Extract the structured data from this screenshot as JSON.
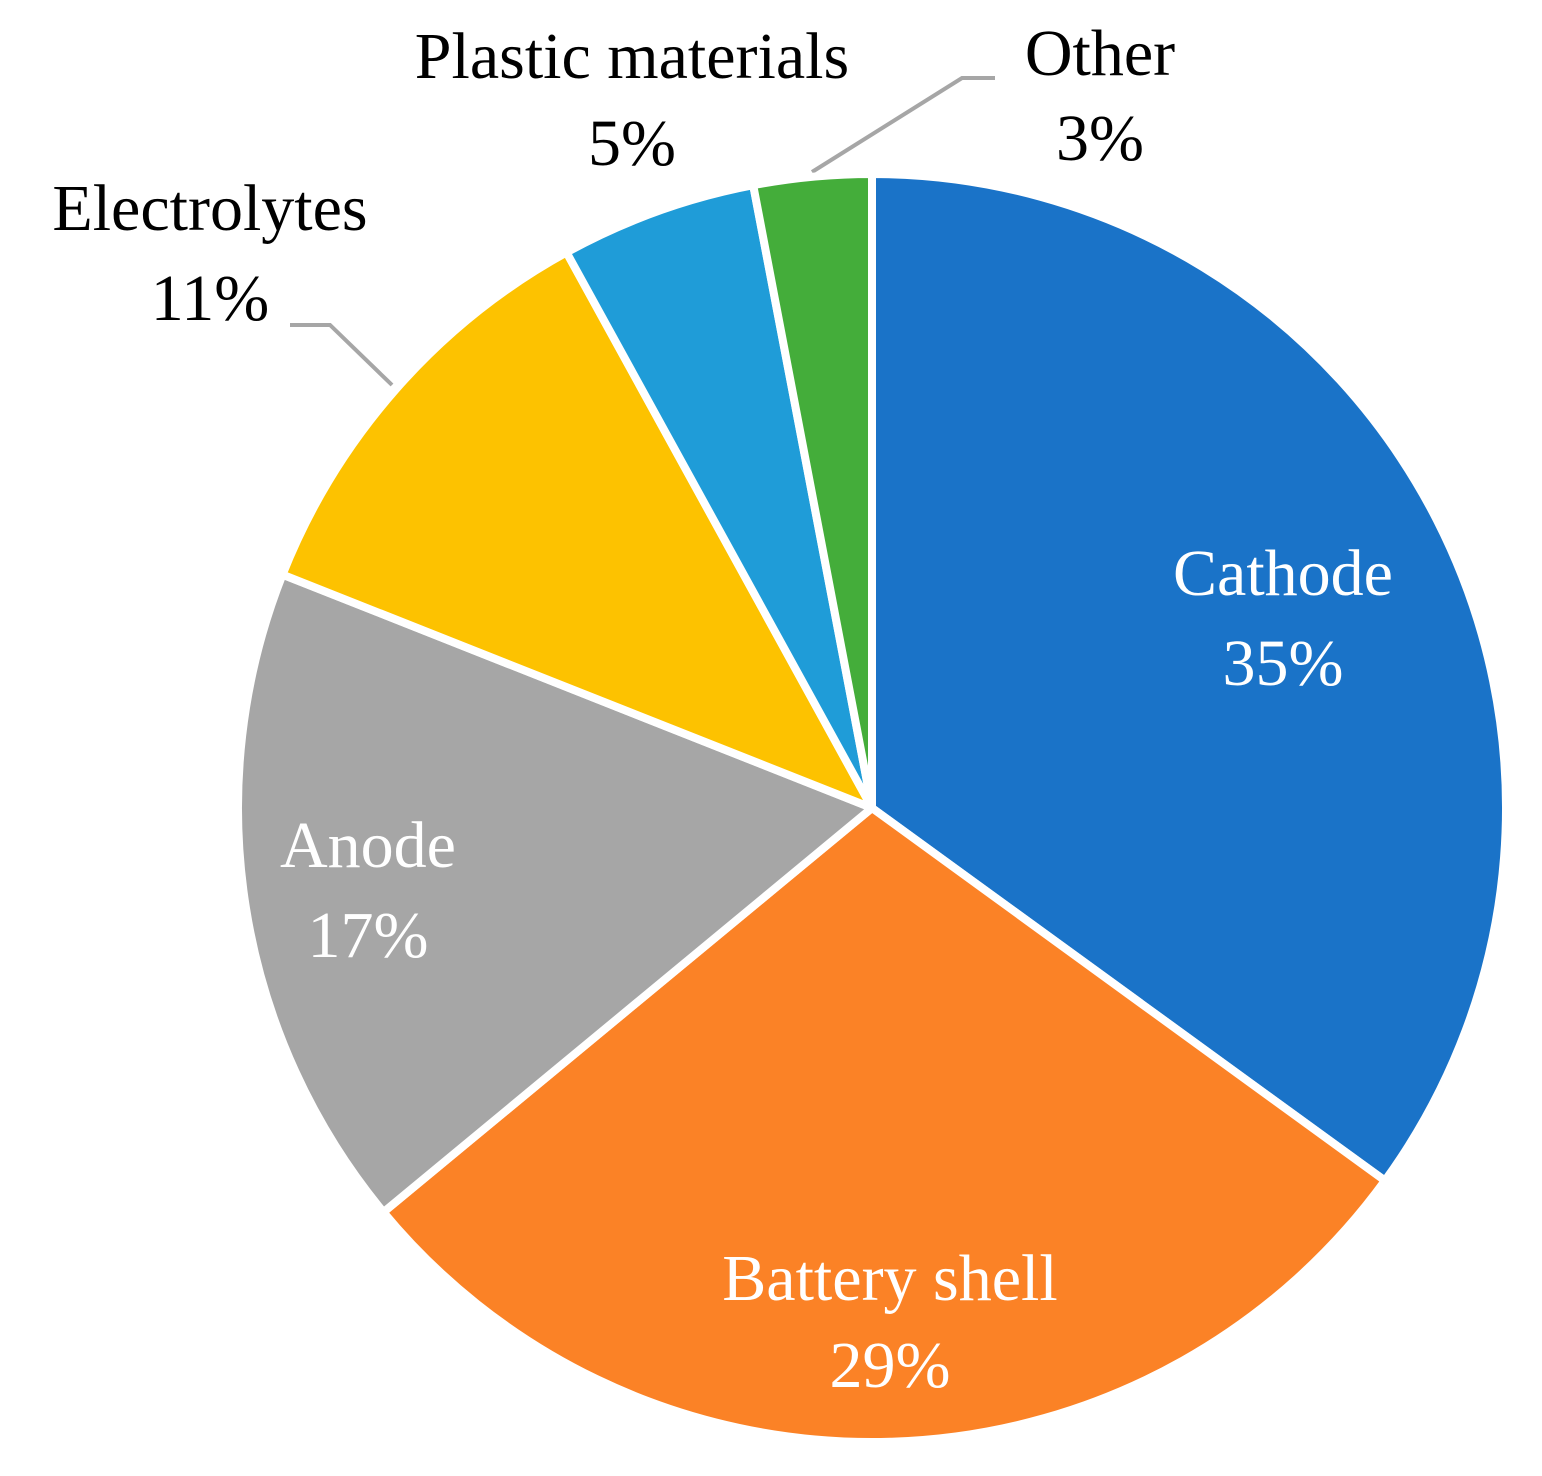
{
  "chart_data": {
    "type": "pie",
    "categories": [
      "Cathode",
      "Battery shell",
      "Anode",
      "Electrolytes",
      "Plastic materials",
      "Other"
    ],
    "values": [
      35,
      29,
      17,
      11,
      5,
      3
    ],
    "value_labels": [
      "35%",
      "29%",
      "17%",
      "11%",
      "5%",
      "3%"
    ],
    "colors": [
      "#1a73c8",
      "#fb8226",
      "#a6a6a6",
      "#fdc200",
      "#1f9cd8",
      "#44ad3a"
    ]
  }
}
